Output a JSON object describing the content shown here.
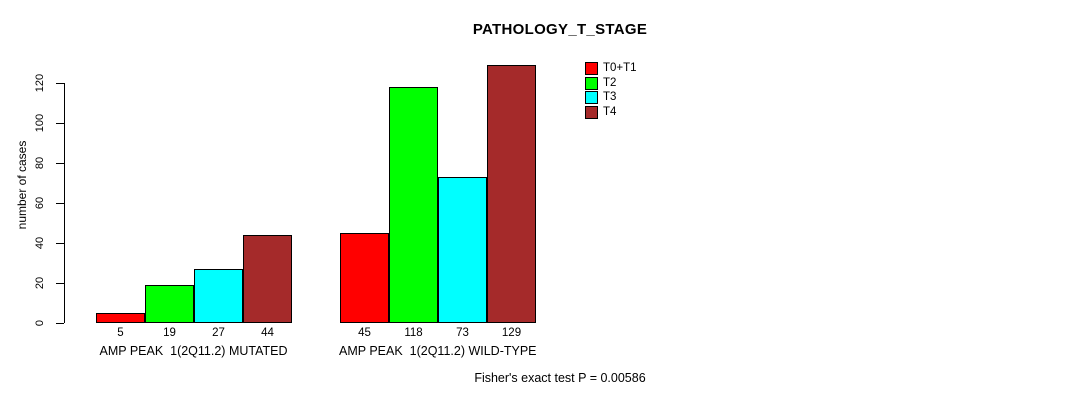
{
  "title": "PATHOLOGY_T_STAGE",
  "footer": "Fisher's exact test P = 0.00586",
  "chart_data": {
    "type": "bar",
    "title": "PATHOLOGY_T_STAGE",
    "xlabel": "",
    "ylabel": "number of cases",
    "categories": [
      "AMP PEAK  1(2Q11.2) MUTATED",
      "AMP PEAK  1(2Q11.2) WILD-TYPE"
    ],
    "series": [
      {
        "name": "T0+T1",
        "color": "#FF0000",
        "values": [
          5,
          45
        ]
      },
      {
        "name": "T2",
        "color": "#00FF00",
        "values": [
          19,
          118
        ]
      },
      {
        "name": "T3",
        "color": "#00FFFF",
        "values": [
          27,
          73
        ]
      },
      {
        "name": "T4",
        "color": "#A52A2A",
        "values": [
          44,
          129
        ]
      }
    ],
    "yticks": [
      0,
      20,
      40,
      60,
      80,
      100,
      120
    ],
    "ylim": [
      0,
      130
    ],
    "grid": false,
    "bar_value_labels": true,
    "legend_position": "top-right",
    "annotation": "Fisher's exact test P = 0.00586"
  }
}
